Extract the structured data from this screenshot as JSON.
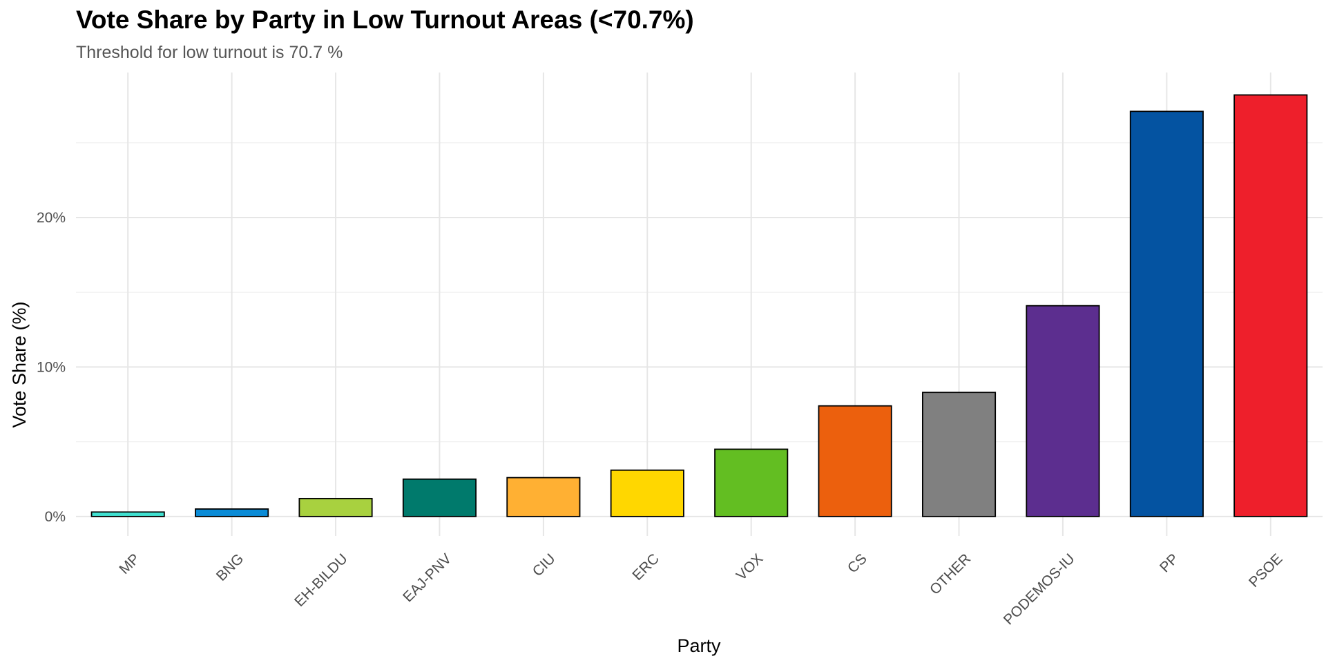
{
  "chart_data": {
    "type": "bar",
    "title": "Vote Share by Party in Low Turnout Areas (<70.7%)",
    "subtitle": "Threshold for low turnout is 70.7 %",
    "xlabel": "Party",
    "ylabel": "Vote Share (%)",
    "categories": [
      "MP",
      "BNG",
      "EH-BILDU",
      "EAJ-PNV",
      "CIU",
      "ERC",
      "VOX",
      "CS",
      "OTHER",
      "PODEMOS-IU",
      "PP",
      "PSOE"
    ],
    "values": [
      0.3,
      0.5,
      1.2,
      2.5,
      2.6,
      3.1,
      4.5,
      7.4,
      8.3,
      14.1,
      27.1,
      28.2
    ],
    "colors": [
      "#40E0D0",
      "#0A8BD6",
      "#A8D13F",
      "#007A6C",
      "#FFB033",
      "#FFD700",
      "#63BE22",
      "#EC600D",
      "#808080",
      "#5C2E8F",
      "#0453A1",
      "#EE1F2B"
    ],
    "ylim": [
      -1.3,
      29.7
    ],
    "yticks": [
      0,
      10,
      20
    ],
    "ytick_labels": [
      "0%",
      "10%",
      "20%"
    ],
    "grid": true,
    "legend": "none"
  }
}
